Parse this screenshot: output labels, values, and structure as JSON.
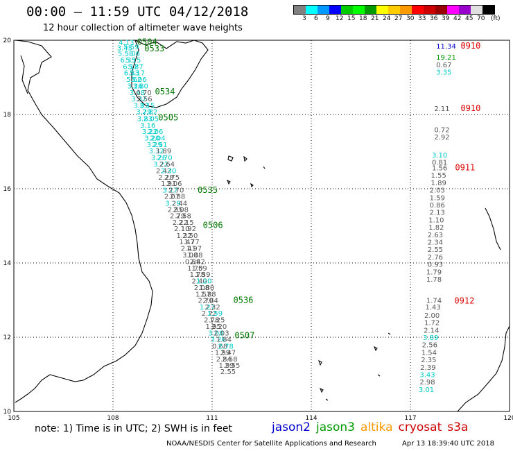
{
  "header": {
    "title": "00:00 – 11:59 UTC 04/12/2018",
    "subtitle": "12 hour collection of altimeter wave heights"
  },
  "colorbar": {
    "colors": [
      "#808080",
      "#00ffff",
      "#0099ff",
      "#0000ff",
      "#00cc00",
      "#00ff00",
      "#009900",
      "#ffff00",
      "#ffcc00",
      "#ff9900",
      "#ff0000",
      "#cc0000",
      "#990000",
      "#ff00ff",
      "#9900cc",
      "#e0e0e0",
      "#000000"
    ],
    "ticks": [
      "3",
      "6",
      "9",
      "12",
      "15",
      "18",
      "21",
      "24",
      "27",
      "30",
      "33",
      "36",
      "39",
      "42",
      "45",
      "70"
    ],
    "unit": "(ft)"
  },
  "map": {
    "x_ticks": [
      "105",
      "108",
      "111",
      "114",
      "117",
      "120"
    ],
    "y_ticks": [
      "20",
      "18",
      "16",
      "14",
      "12",
      "10"
    ],
    "lon_range": [
      105,
      120
    ],
    "lat_range": [
      10,
      20
    ]
  },
  "pass_labels": [
    {
      "text": "0504",
      "color": "#007700",
      "lon": 108.73,
      "lat": 19.95
    },
    {
      "text": "0533",
      "color": "#007700",
      "lon": 108.95,
      "lat": 19.78
    },
    {
      "text": "0534",
      "color": "#007700",
      "lon": 109.27,
      "lat": 18.62
    },
    {
      "text": "0505",
      "color": "#007700",
      "lon": 109.37,
      "lat": 17.92
    },
    {
      "text": "0535",
      "color": "#007700",
      "lon": 110.56,
      "lat": 15.96
    },
    {
      "text": "0506",
      "color": "#007700",
      "lon": 110.72,
      "lat": 15.02
    },
    {
      "text": "0536",
      "color": "#007700",
      "lon": 111.64,
      "lat": 13.0
    },
    {
      "text": "0507",
      "color": "#007700",
      "lon": 111.68,
      "lat": 12.05
    },
    {
      "text": "0910",
      "color": "#dd0000",
      "lon": 118.52,
      "lat": 19.85
    },
    {
      "text": "0910",
      "color": "#dd0000",
      "lon": 118.52,
      "lat": 18.17
    },
    {
      "text": "0911",
      "color": "#dd0000",
      "lon": 118.35,
      "lat": 16.57
    },
    {
      "text": "0912",
      "color": "#dd0000",
      "lon": 118.33,
      "lat": 12.98
    }
  ],
  "swh_points": [
    {
      "text": "4.13",
      "color": "#00cccc",
      "lon": 108.17,
      "lat": 19.95
    },
    {
      "text": "3.45",
      "color": "#00cccc",
      "lon": 108.12,
      "lat": 19.8
    },
    {
      "text": "5.59",
      "color": "#00cccc",
      "lon": 108.32,
      "lat": 19.83
    },
    {
      "text": "5.58",
      "color": "#00cccc",
      "lon": 108.15,
      "lat": 19.65
    },
    {
      "text": "5.06",
      "color": "#00cccc",
      "lon": 108.35,
      "lat": 19.65
    },
    {
      "text": "6.35",
      "color": "#00cccc",
      "lon": 108.22,
      "lat": 19.48
    },
    {
      "text": "5.15",
      "color": "#00cccc",
      "lon": 108.38,
      "lat": 19.48
    },
    {
      "text": "6.12",
      "color": "#00cccc",
      "lon": 108.3,
      "lat": 19.3
    },
    {
      "text": "5.87",
      "color": "#00cccc",
      "lon": 108.45,
      "lat": 19.3
    },
    {
      "text": "6.33",
      "color": "#00cccc",
      "lon": 108.33,
      "lat": 19.13
    },
    {
      "text": "5.17",
      "color": "#00cccc",
      "lon": 108.5,
      "lat": 19.13
    },
    {
      "text": "5.62",
      "color": "#00cccc",
      "lon": 108.4,
      "lat": 18.95
    },
    {
      "text": "5.06",
      "color": "#00cccc",
      "lon": 108.55,
      "lat": 18.95
    },
    {
      "text": "3.26",
      "color": "#00cccc",
      "lon": 108.43,
      "lat": 18.78
    },
    {
      "text": "3.80",
      "color": "#00cccc",
      "lon": 108.6,
      "lat": 18.78
    },
    {
      "text": "3.48",
      "color": "#00cccc",
      "lon": 108.5,
      "lat": 18.6
    },
    {
      "text": "0.70",
      "color": "#555555",
      "lon": 108.7,
      "lat": 18.6
    },
    {
      "text": "3.32",
      "color": "#00cccc",
      "lon": 108.55,
      "lat": 18.43
    },
    {
      "text": "2.56",
      "color": "#555555",
      "lon": 108.72,
      "lat": 18.43
    },
    {
      "text": "3.07",
      "color": "#00cccc",
      "lon": 108.62,
      "lat": 18.25
    },
    {
      "text": "3.15",
      "color": "#00cccc",
      "lon": 108.8,
      "lat": 18.25
    },
    {
      "text": "3.29",
      "color": "#00cccc",
      "lon": 108.7,
      "lat": 18.08
    },
    {
      "text": "2.82",
      "color": "#00cccc",
      "lon": 108.88,
      "lat": 18.08
    },
    {
      "text": "3.83",
      "color": "#00cccc",
      "lon": 108.73,
      "lat": 17.9
    },
    {
      "text": "2.05",
      "color": "#00cccc",
      "lon": 108.92,
      "lat": 17.9
    },
    {
      "text": "3.16",
      "color": "#00cccc",
      "lon": 108.82,
      "lat": 17.72
    },
    {
      "text": "3.22",
      "color": "#00cccc",
      "lon": 108.88,
      "lat": 17.55
    },
    {
      "text": "2.06",
      "color": "#00cccc",
      "lon": 109.05,
      "lat": 17.55
    },
    {
      "text": "3.20",
      "color": "#00cccc",
      "lon": 108.95,
      "lat": 17.37
    },
    {
      "text": "2.04",
      "color": "#00cccc",
      "lon": 109.12,
      "lat": 17.37
    },
    {
      "text": "3.29",
      "color": "#00cccc",
      "lon": 109.02,
      "lat": 17.2
    },
    {
      "text": "2.51",
      "color": "#00cccc",
      "lon": 109.18,
      "lat": 17.2
    },
    {
      "text": "3.32",
      "color": "#00cccc",
      "lon": 109.08,
      "lat": 17.03
    },
    {
      "text": "1.89",
      "color": "#555555",
      "lon": 109.3,
      "lat": 17.03
    },
    {
      "text": "3.26",
      "color": "#00cccc",
      "lon": 109.15,
      "lat": 16.85
    },
    {
      "text": "2.70",
      "color": "#00cccc",
      "lon": 109.33,
      "lat": 16.85
    },
    {
      "text": "3.22",
      "color": "#00cccc",
      "lon": 109.22,
      "lat": 16.67
    },
    {
      "text": "2.64",
      "color": "#555555",
      "lon": 109.4,
      "lat": 16.67
    },
    {
      "text": "2.42",
      "color": "#555555",
      "lon": 109.3,
      "lat": 16.5
    },
    {
      "text": "2.30",
      "color": "#00cccc",
      "lon": 109.45,
      "lat": 16.5
    },
    {
      "text": "2.28",
      "color": "#555555",
      "lon": 109.37,
      "lat": 16.32
    },
    {
      "text": "2.75",
      "color": "#555555",
      "lon": 109.55,
      "lat": 16.32
    },
    {
      "text": "1.91",
      "color": "#555555",
      "lon": 109.45,
      "lat": 16.15
    },
    {
      "text": "2.06",
      "color": "#555555",
      "lon": 109.62,
      "lat": 16.15
    },
    {
      "text": "3.17",
      "color": "#00cccc",
      "lon": 109.5,
      "lat": 15.97
    },
    {
      "text": "2.70",
      "color": "#555555",
      "lon": 109.68,
      "lat": 15.97
    },
    {
      "text": "2.07",
      "color": "#555555",
      "lon": 109.55,
      "lat": 15.8
    },
    {
      "text": "2.88",
      "color": "#555555",
      "lon": 109.72,
      "lat": 15.8
    },
    {
      "text": "3.29",
      "color": "#00cccc",
      "lon": 109.58,
      "lat": 15.62
    },
    {
      "text": "2.44",
      "color": "#555555",
      "lon": 109.78,
      "lat": 15.62
    },
    {
      "text": "2.85",
      "color": "#555555",
      "lon": 109.65,
      "lat": 15.45
    },
    {
      "text": "2.08",
      "color": "#555555",
      "lon": 109.82,
      "lat": 15.45
    },
    {
      "text": "2.79",
      "color": "#555555",
      "lon": 109.72,
      "lat": 15.28
    },
    {
      "text": "2.58",
      "color": "#555555",
      "lon": 109.9,
      "lat": 15.28
    },
    {
      "text": "2.22",
      "color": "#555555",
      "lon": 109.8,
      "lat": 15.1
    },
    {
      "text": "2.15",
      "color": "#555555",
      "lon": 109.98,
      "lat": 15.1
    },
    {
      "text": "2.10",
      "color": "#555555",
      "lon": 109.85,
      "lat": 14.93
    },
    {
      "text": "1.92",
      "color": "#555555",
      "lon": 110.05,
      "lat": 14.93
    },
    {
      "text": "1.32",
      "color": "#555555",
      "lon": 109.92,
      "lat": 14.75
    },
    {
      "text": "2.50",
      "color": "#555555",
      "lon": 110.1,
      "lat": 14.75
    },
    {
      "text": "1.47",
      "color": "#555555",
      "lon": 110.0,
      "lat": 14.58
    },
    {
      "text": "1.77",
      "color": "#555555",
      "lon": 110.15,
      "lat": 14.58
    },
    {
      "text": "2.41",
      "color": "#555555",
      "lon": 110.05,
      "lat": 14.4
    },
    {
      "text": "1.97",
      "color": "#555555",
      "lon": 110.22,
      "lat": 14.4
    },
    {
      "text": "3.00",
      "color": "#555555",
      "lon": 110.1,
      "lat": 14.22
    },
    {
      "text": "1.88",
      "color": "#555555",
      "lon": 110.25,
      "lat": 14.22
    },
    {
      "text": "0.88",
      "color": "#555555",
      "lon": 110.18,
      "lat": 14.05
    },
    {
      "text": "2.42",
      "color": "#555555",
      "lon": 110.32,
      "lat": 14.05
    },
    {
      "text": "1.70",
      "color": "#555555",
      "lon": 110.25,
      "lat": 13.87
    },
    {
      "text": "1.59",
      "color": "#555555",
      "lon": 110.38,
      "lat": 13.87
    },
    {
      "text": "1.78",
      "color": "#555555",
      "lon": 110.32,
      "lat": 13.7
    },
    {
      "text": "1.59",
      "color": "#555555",
      "lon": 110.48,
      "lat": 13.7
    },
    {
      "text": "2.40",
      "color": "#555555",
      "lon": 110.38,
      "lat": 13.52
    },
    {
      "text": "1.20",
      "color": "#00cccc",
      "lon": 110.52,
      "lat": 13.52
    },
    {
      "text": "2.08",
      "color": "#555555",
      "lon": 110.45,
      "lat": 13.35
    },
    {
      "text": "1.80",
      "color": "#555555",
      "lon": 110.6,
      "lat": 13.35
    },
    {
      "text": "1.57",
      "color": "#555555",
      "lon": 110.5,
      "lat": 13.17
    },
    {
      "text": "1.88",
      "color": "#555555",
      "lon": 110.65,
      "lat": 13.17
    },
    {
      "text": "2.70",
      "color": "#555555",
      "lon": 110.57,
      "lat": 13.0
    },
    {
      "text": "2.84",
      "color": "#555555",
      "lon": 110.72,
      "lat": 13.0
    },
    {
      "text": "1.27",
      "color": "#00cccc",
      "lon": 110.62,
      "lat": 12.82
    },
    {
      "text": "2.32",
      "color": "#555555",
      "lon": 110.78,
      "lat": 12.82
    },
    {
      "text": "2.72",
      "color": "#555555",
      "lon": 110.68,
      "lat": 12.65
    },
    {
      "text": "1.59",
      "color": "#00cccc",
      "lon": 110.85,
      "lat": 12.65
    },
    {
      "text": "2.78",
      "color": "#555555",
      "lon": 110.75,
      "lat": 12.48
    },
    {
      "text": "1.25",
      "color": "#555555",
      "lon": 110.92,
      "lat": 12.48
    },
    {
      "text": "1.95",
      "color": "#555555",
      "lon": 110.8,
      "lat": 12.3
    },
    {
      "text": "2.20",
      "color": "#555555",
      "lon": 110.98,
      "lat": 12.3
    },
    {
      "text": "3.08",
      "color": "#00cccc",
      "lon": 110.88,
      "lat": 12.12
    },
    {
      "text": "2.03",
      "color": "#555555",
      "lon": 111.05,
      "lat": 12.12
    },
    {
      "text": "3.26",
      "color": "#00cccc",
      "lon": 110.95,
      "lat": 11.95
    },
    {
      "text": "1.84",
      "color": "#555555",
      "lon": 111.12,
      "lat": 11.95
    },
    {
      "text": "0.68",
      "color": "#555555",
      "lon": 111.0,
      "lat": 11.77
    },
    {
      "text": "2.78",
      "color": "#00cccc",
      "lon": 111.18,
      "lat": 11.77
    },
    {
      "text": "1.99",
      "color": "#555555",
      "lon": 111.08,
      "lat": 11.6
    },
    {
      "text": "2.47",
      "color": "#555555",
      "lon": 111.25,
      "lat": 11.6
    },
    {
      "text": "2.84",
      "color": "#555555",
      "lon": 111.12,
      "lat": 11.42
    },
    {
      "text": "2.58",
      "color": "#555555",
      "lon": 111.3,
      "lat": 11.42
    },
    {
      "text": "1.99",
      "color": "#555555",
      "lon": 111.2,
      "lat": 11.25
    },
    {
      "text": "2.55",
      "color": "#555555",
      "lon": 111.38,
      "lat": 11.25
    },
    {
      "text": "2.55",
      "color": "#555555",
      "lon": 111.25,
      "lat": 11.08
    },
    {
      "text": "11.34",
      "color": "#0000cc",
      "lon": 117.78,
      "lat": 19.85
    },
    {
      "text": "19.21",
      "color": "#009900",
      "lon": 117.78,
      "lat": 19.55
    },
    {
      "text": "0.67",
      "color": "#555555",
      "lon": 117.78,
      "lat": 19.35
    },
    {
      "text": "3.35",
      "color": "#00cccc",
      "lon": 117.78,
      "lat": 19.15
    },
    {
      "text": "2.11",
      "color": "#555555",
      "lon": 117.72,
      "lat": 18.17
    },
    {
      "text": "0.72",
      "color": "#555555",
      "lon": 117.72,
      "lat": 17.6
    },
    {
      "text": "2.92",
      "color": "#555555",
      "lon": 117.72,
      "lat": 17.4
    },
    {
      "text": "3.10",
      "color": "#00cccc",
      "lon": 117.65,
      "lat": 16.92
    },
    {
      "text": "0.81",
      "color": "#555555",
      "lon": 117.65,
      "lat": 16.72
    },
    {
      "text": "1.56",
      "color": "#555555",
      "lon": 117.65,
      "lat": 16.57
    },
    {
      "text": "1.55",
      "color": "#555555",
      "lon": 117.62,
      "lat": 16.37
    },
    {
      "text": "1.89",
      "color": "#555555",
      "lon": 117.62,
      "lat": 16.17
    },
    {
      "text": "2.03",
      "color": "#555555",
      "lon": 117.58,
      "lat": 15.97
    },
    {
      "text": "1.59",
      "color": "#555555",
      "lon": 117.58,
      "lat": 15.77
    },
    {
      "text": "0.86",
      "color": "#555555",
      "lon": 117.58,
      "lat": 15.57
    },
    {
      "text": "2.13",
      "color": "#555555",
      "lon": 117.58,
      "lat": 15.37
    },
    {
      "text": "1.10",
      "color": "#555555",
      "lon": 117.55,
      "lat": 15.17
    },
    {
      "text": "1.82",
      "color": "#555555",
      "lon": 117.55,
      "lat": 14.97
    },
    {
      "text": "2.63",
      "color": "#555555",
      "lon": 117.52,
      "lat": 14.77
    },
    {
      "text": "2.34",
      "color": "#555555",
      "lon": 117.52,
      "lat": 14.57
    },
    {
      "text": "2.55",
      "color": "#555555",
      "lon": 117.52,
      "lat": 14.37
    },
    {
      "text": "2.76",
      "color": "#555555",
      "lon": 117.52,
      "lat": 14.17
    },
    {
      "text": "0.93",
      "color": "#555555",
      "lon": 117.52,
      "lat": 13.97
    },
    {
      "text": "1.79",
      "color": "#555555",
      "lon": 117.48,
      "lat": 13.77
    },
    {
      "text": "1.78",
      "color": "#555555",
      "lon": 117.48,
      "lat": 13.57
    },
    {
      "text": "1.74",
      "color": "#555555",
      "lon": 117.48,
      "lat": 13.0
    },
    {
      "text": "1.43",
      "color": "#555555",
      "lon": 117.45,
      "lat": 12.82
    },
    {
      "text": "2.00",
      "color": "#555555",
      "lon": 117.42,
      "lat": 12.6
    },
    {
      "text": "1.72",
      "color": "#555555",
      "lon": 117.42,
      "lat": 12.4
    },
    {
      "text": "2.14",
      "color": "#555555",
      "lon": 117.4,
      "lat": 12.2
    },
    {
      "text": "3.89",
      "color": "#00cccc",
      "lon": 117.38,
      "lat": 12.0
    },
    {
      "text": "2.56",
      "color": "#555555",
      "lon": 117.35,
      "lat": 11.8
    },
    {
      "text": "1.54",
      "color": "#555555",
      "lon": 117.33,
      "lat": 11.6
    },
    {
      "text": "2.35",
      "color": "#555555",
      "lon": 117.32,
      "lat": 11.4
    },
    {
      "text": "2.39",
      "color": "#555555",
      "lon": 117.3,
      "lat": 11.2
    },
    {
      "text": "3.43",
      "color": "#00cccc",
      "lon": 117.28,
      "lat": 11.0
    },
    {
      "text": "2.98",
      "color": "#555555",
      "lon": 117.28,
      "lat": 10.8
    },
    {
      "text": "3.01",
      "color": "#00cccc",
      "lon": 117.25,
      "lat": 10.6
    }
  ],
  "footer": {
    "note": "note:  1) Time is in UTC;  2) SWH is in feet",
    "satellites": [
      {
        "name": "jason2",
        "color": "#0000cc"
      },
      {
        "name": "jason3",
        "color": "#009900"
      },
      {
        "name": "altika",
        "color": "#ff9900"
      },
      {
        "name": "cryosat",
        "color": "#cc0000"
      },
      {
        "name": "s3a",
        "color": "#cc0000"
      }
    ],
    "credit": "NOAA/NESDIS Center for Satellite Applications and Research",
    "timestamp": "Apr 13 18:39:40 UTC 2018"
  }
}
